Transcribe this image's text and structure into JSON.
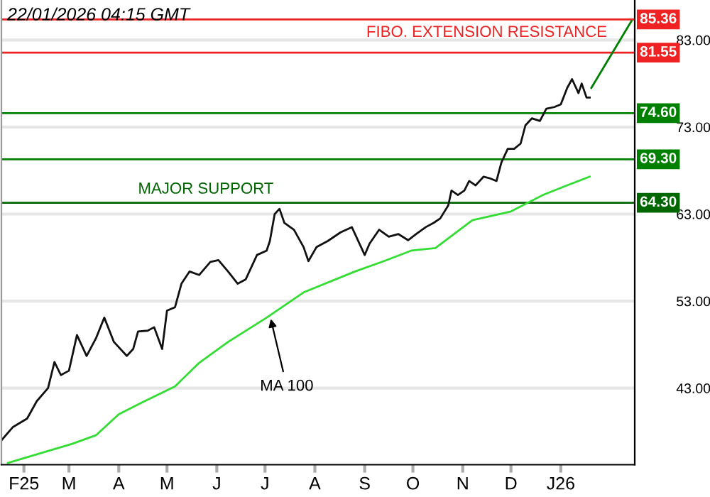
{
  "chart_data": {
    "type": "line",
    "annotations": [
      "22/01/2026 04:15 GMT",
      {
        "text": "FIBO. EXTENSION RESISTANCE",
        "x": "2025-09-02",
        "y": 85.36
      },
      {
        "text": "MAJOR SUPPORT",
        "x": "2025-04-13",
        "y": 64.3
      },
      {
        "text": "MA 100",
        "x": "2025-07-04",
        "y": 51.4
      }
    ],
    "series": [
      {
        "color": "#111111",
        "x": [
          "2025-01-18",
          "2025-01-25",
          "2025-02-03",
          "2025-02-09",
          "2025-02-16",
          "2025-02-20",
          "2025-02-24",
          "2025-03-01",
          "2025-03-06",
          "2025-03-12",
          "2025-03-18",
          "2025-03-23",
          "2025-03-29",
          "2025-04-06",
          "2025-04-10",
          "2025-04-13",
          "2025-04-19",
          "2025-04-23",
          "2025-04-28",
          "2025-05-01",
          "2025-05-06",
          "2025-05-10",
          "2025-05-15",
          "2025-05-21",
          "2025-05-28",
          "2025-06-02",
          "2025-06-08",
          "2025-06-14",
          "2025-06-19",
          "2025-06-26",
          "2025-07-02",
          "2025-07-04",
          "2025-07-07",
          "2025-07-10",
          "2025-07-13",
          "2025-07-19",
          "2025-07-25",
          "2025-07-28",
          "2025-08-02",
          "2025-08-09",
          "2025-08-17",
          "2025-08-24",
          "2025-08-26",
          "2025-09-01",
          "2025-09-04",
          "2025-09-10",
          "2025-09-16",
          "2025-09-22",
          "2025-09-28",
          "2025-10-03",
          "2025-10-09",
          "2025-10-14",
          "2025-10-18",
          "2025-10-23",
          "2025-10-25",
          "2025-10-29",
          "2025-11-02",
          "2025-11-05",
          "2025-11-09",
          "2025-11-14",
          "2025-11-18",
          "2025-11-22",
          "2025-11-25",
          "2025-11-29",
          "2025-12-03",
          "2025-12-07",
          "2025-12-10",
          "2025-12-14",
          "2025-12-19",
          "2025-12-23",
          "2025-12-28",
          "2026-01-01",
          "2026-01-05",
          "2026-01-08",
          "2026-01-12",
          "2026-01-14",
          "2026-01-17",
          "2026-01-19"
        ],
        "values": [
          37.0,
          38.5,
          39.5,
          41.5,
          43.0,
          46.0,
          44.5,
          45.0,
          49.1,
          46.7,
          48.8,
          51.1,
          48.3,
          46.7,
          47.5,
          49.5,
          49.6,
          50.0,
          47.5,
          51.9,
          52.3,
          55.0,
          56.4,
          56.0,
          57.5,
          57.7,
          56.4,
          55.0,
          55.5,
          58.3,
          58.8,
          59.9,
          63.0,
          63.6,
          62.0,
          61.2,
          59.2,
          57.6,
          59.2,
          59.9,
          60.9,
          61.5,
          60.7,
          58.3,
          59.6,
          61.2,
          60.4,
          60.7,
          60.0,
          60.7,
          61.5,
          62.0,
          62.5,
          64.0,
          65.7,
          65.2,
          65.7,
          66.8,
          66.3,
          67.3,
          67.1,
          66.8,
          68.9,
          70.5,
          70.5,
          71.1,
          73.2,
          74.0,
          73.7,
          75.1,
          75.3,
          75.6,
          77.5,
          78.5,
          76.9,
          78.0,
          76.4,
          76.4
        ]
      },
      {
        "color": "#33dd33",
        "x": [
          "2025-01-22",
          "2025-02-02",
          "2025-03-03",
          "2025-03-18",
          "2025-04-01",
          "2025-04-16",
          "2025-05-06",
          "2025-05-21",
          "2025-06-08",
          "2025-07-02",
          "2025-07-25",
          "2025-08-26",
          "2025-09-13",
          "2025-09-30",
          "2025-10-15",
          "2025-11-07",
          "2025-12-01",
          "2025-12-21",
          "2026-01-05",
          "2026-01-19"
        ],
        "values": [
          34.4,
          35.0,
          36.6,
          37.6,
          40.0,
          41.4,
          43.2,
          45.9,
          48.3,
          51.1,
          54.0,
          56.4,
          57.6,
          58.8,
          59.1,
          62.3,
          63.3,
          65.2,
          66.3,
          67.3
        ]
      },
      {
        "color": "#008000",
        "x": [
          "2026-01-20",
          "2026-02-14"
        ],
        "values": [
          77.5,
          85.2
        ]
      }
    ],
    "ref_lines": [
      {
        "axis": "y",
        "value": 85.36,
        "label": "85.36",
        "color": "#ee2222"
      },
      {
        "axis": "y",
        "value": 81.55,
        "label": "81.55",
        "color": "#ee2222"
      },
      {
        "axis": "y",
        "value": 74.6,
        "label": "74.60",
        "color": "#008000"
      },
      {
        "axis": "y",
        "value": 69.3,
        "label": "69.30",
        "color": "#008000"
      },
      {
        "axis": "y",
        "value": 64.3,
        "label": "64.30",
        "color": "#006600"
      }
    ],
    "xlim": [
      "2025-01-18",
      "2026-02-16"
    ],
    "xticks": [
      {
        "value": "2025-02-01",
        "label": "F25"
      },
      {
        "value": "2025-03-01",
        "label": "M"
      },
      {
        "value": "2025-04-01",
        "label": "A"
      },
      {
        "value": "2025-05-01",
        "label": "M"
      },
      {
        "value": "2025-06-01",
        "label": "J"
      },
      {
        "value": "2025-07-01",
        "label": "J"
      },
      {
        "value": "2025-08-01",
        "label": "A"
      },
      {
        "value": "2025-09-01",
        "label": "S"
      },
      {
        "value": "2025-10-01",
        "label": "O"
      },
      {
        "value": "2025-11-01",
        "label": "N"
      },
      {
        "value": "2025-12-01",
        "label": "D"
      },
      {
        "value": "2026-01-01",
        "label": "J26"
      }
    ],
    "ylim": [
      34.2,
      87.6
    ],
    "yticks": [
      {
        "value": 43,
        "label": "43.00"
      },
      {
        "value": 53,
        "label": "53.00"
      },
      {
        "value": 63,
        "label": "63.00"
      },
      {
        "value": 73,
        "label": "73.00"
      },
      {
        "value": 83,
        "label": "83.00"
      }
    ],
    "grid": "y",
    "legend": false,
    "marker": "none",
    "line_style": "solid"
  }
}
